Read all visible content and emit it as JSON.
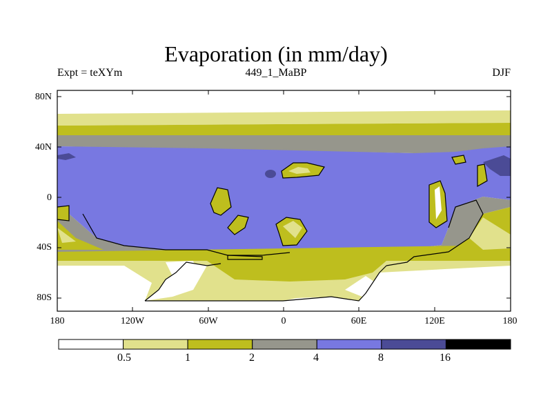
{
  "title": "Evaporation (in mm/day)",
  "subtitle_left": "Expt = teXYm",
  "subtitle_center": "449_1_MaBP",
  "subtitle_right": "DJF",
  "y_ticks": [
    "80N",
    "40N",
    "0",
    "40S",
    "80S"
  ],
  "x_ticks": [
    "180",
    "120W",
    "60W",
    "0",
    "60E",
    "120E",
    "180"
  ],
  "colorbar": {
    "levels": [
      "0.5",
      "1",
      "2",
      "4",
      "8",
      "16"
    ],
    "colors": [
      "#ffffff",
      "#e1e18c",
      "#bebe1e",
      "#96968c",
      "#7878e1",
      "#4b4b96",
      "#000000"
    ]
  },
  "colors": {
    "land_outline": "#000000",
    "frame": "#000000"
  }
}
